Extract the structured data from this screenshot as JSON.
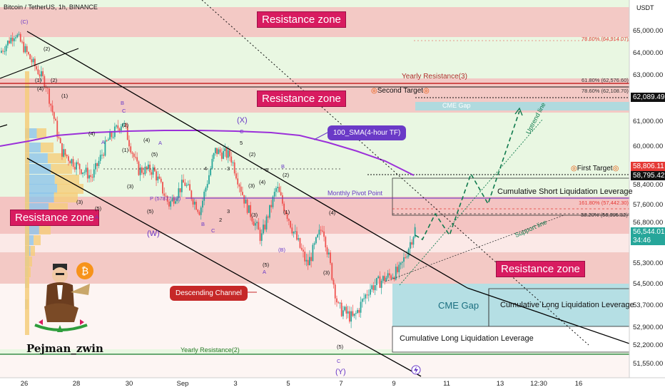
{
  "header": {
    "symbol_line": "Bitcoin / TetherUS, 1h, BINANCE",
    "currency": "USDT"
  },
  "author": "Pejman_zwin",
  "colors": {
    "zone_fill": "#f3c9c5",
    "zone_label": "#d81b60",
    "green_bg": "#e9f7e2",
    "channel": "#000000",
    "sma": "#9b30d9",
    "cme_fill": "#a8dbe0",
    "up_candle": "#26a69a",
    "down_candle": "#ef5350",
    "fib": "#e53935",
    "projection": "#0f7a4d"
  },
  "zones": {
    "top": "Resistance zone",
    "mid": "Resistance zone",
    "left": "Resistance zone",
    "right": "Resistance zone"
  },
  "annotations": {
    "yearly_resistance_3": "Yearly Resistance(3)",
    "yearly_resistance_2": "Yearly Resistance(2)",
    "second_target": "Second Target",
    "first_target": "First Target",
    "cme_gap_top": "CME Gap",
    "cme_gap_bottom": "CME Gap",
    "sma": "100_SMA(4-hour TF)",
    "monthly_pivot": "Monthly Pivot Point",
    "pivot_value": "P (57877.92)",
    "short_liq": "Cumulative Short Liquidation Leverage",
    "long_liq_1": "Cumulative Long Liquidation Leverage",
    "long_liq_2": "Cumulative Long Liquidation Leverage",
    "descending_channel": "Descending Channel",
    "uptrend_line": "Uptrend line",
    "support_line": "Support line"
  },
  "fib_labels": [
    {
      "text": "78.60% (64,914.07)",
      "price": 64914.07
    },
    {
      "text": "61.80% (62,576.60)",
      "price": 62576.6
    },
    {
      "text": "78.60% (62,108.70)",
      "price": 62108.7
    },
    {
      "text": "161.80% (57,442.30)",
      "price": 57442.3
    },
    {
      "text": "38.20% (56,996.32)",
      "price": 56996.32
    }
  ],
  "price_tags": {
    "tag_62089": "62,089.49",
    "tag_58806": "58,806.11",
    "tag_58795": "58,795.42",
    "tag_56544": "56,544.01",
    "countdown": "34:46"
  },
  "waves": {
    "c_top": "(C)",
    "w2": "(2)",
    "w1": "(1)",
    "w2b": "(2)",
    "w1b": "(1)",
    "b_circ": "B",
    "c_letter": "C",
    "w4a": "(4)",
    "w2c": "(2)",
    "a1": "A",
    "w4b": "(4)",
    "a_circ": "A",
    "x_label": "(X)",
    "c_circ": "C",
    "five": "5",
    "w2d": "(2)",
    "three": "3",
    "b_circ2": "B",
    "w4c": "(4)",
    "w4d": "(4)",
    "w3": "(3)",
    "w3b": "(3)",
    "w5": "(5)",
    "a_circ2": "A",
    "w5b": "(5)",
    "w_label": "(W)",
    "w5c": "(5)",
    "a_circ3": "A",
    "w3c": "(3)",
    "b_par": "(B)",
    "w5d": "(5)",
    "w3d": "(3)",
    "w4e": "(4)",
    "w5e": "(5)",
    "c_circ2": "C",
    "y_label": "(Y)",
    "b_letter": "B",
    "c_letter2": "C",
    "w2e": "2",
    "w3e": "3",
    "w4f": "4",
    "w5f": "5",
    "w1c": "(1)",
    "w3f": "(3)",
    "w2f": "(2)",
    "w1d": "(1)"
  },
  "chart_data": {
    "type": "candlestick",
    "title": "Bitcoin / TetherUS, 1h, BINANCE",
    "ylabel": "USDT",
    "ylim": [
      51200,
      66000
    ],
    "y_ticks": [
      65000,
      64000,
      63000,
      62000,
      61000,
      60000,
      58400,
      57600,
      56800,
      55300,
      54500,
      53700,
      52900,
      52200,
      51550
    ],
    "y_tick_labels": [
      "65,000.00",
      "64,000.00",
      "63,000.00",
      "62,000.00",
      "61,000.00",
      "60,000.00",
      "58,400.00",
      "57,600.00",
      "56,800.00",
      "55,300.00",
      "54,500.00",
      "53,700.00",
      "52,900.00",
      "52,200.00",
      "51,550.00"
    ],
    "x_ticks": [
      "26",
      "28",
      "30",
      "Sep",
      "3",
      "5",
      "7",
      "9",
      "11",
      "13",
      "12:30",
      "16"
    ],
    "price_path": [
      [
        "Aug 25",
        64000
      ],
      [
        "Aug 26",
        64900
      ],
      [
        "Aug 26",
        63700
      ],
      [
        "Aug 27",
        62600
      ],
      [
        "Aug 27",
        59800
      ],
      [
        "Aug 28",
        59200
      ],
      [
        "Aug 28",
        58700
      ],
      [
        "Aug 29",
        60200
      ],
      [
        "Aug 29",
        61000
      ],
      [
        "Aug 30",
        59000
      ],
      [
        "Aug 31",
        59000
      ],
      [
        "Sep 1",
        57600
      ],
      [
        "Sep 1",
        58500
      ],
      [
        "Sep 2",
        57300
      ],
      [
        "Sep 3",
        59800
      ],
      [
        "Sep 3",
        59600
      ],
      [
        "Sep 4",
        57600
      ],
      [
        "Sep 4",
        56200
      ],
      [
        "Sep 5",
        58300
      ],
      [
        "Sep 5",
        56600
      ],
      [
        "Sep 6",
        55200
      ],
      [
        "Sep 6",
        56700
      ],
      [
        "Sep 7",
        53600
      ],
      [
        "Sep 7",
        53200
      ],
      [
        "Sep 8",
        54300
      ],
      [
        "Sep 9",
        54700
      ],
      [
        "Sep 9",
        55000
      ],
      [
        "Sep 10",
        56544
      ]
    ],
    "last_price": 56544.01
  }
}
